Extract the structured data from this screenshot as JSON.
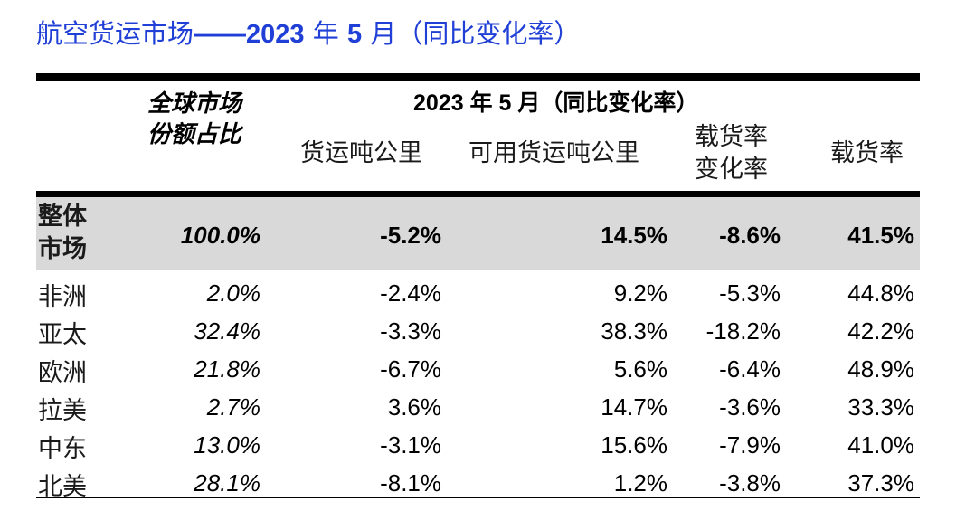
{
  "title": {
    "prefix": "航空货运市场",
    "dashes": "——",
    "year": "2023",
    "nian": "年",
    "month": "5",
    "yue": "月（同比变化率）"
  },
  "colors": {
    "title": "#1f3fd6",
    "band": "#d9d9d9"
  },
  "header": {
    "share_line1": "全球市场",
    "share_line2": "份额占比",
    "group_label": "2023 年 5 月（同比变化率）",
    "col_ftk": "货运吨公里",
    "col_aftk": "可用货运吨公里",
    "col_lf_change_line1": "载货率",
    "col_lf_change_line2": "变化率",
    "col_lf": "载货率"
  },
  "overall": {
    "region_line1": "整体",
    "region_line2": "市场",
    "share": "100.0%",
    "ftk": "-5.2%",
    "aftk": "14.5%",
    "lf_change": "-8.6%",
    "lf": "41.5%"
  },
  "rows": [
    {
      "region": "非洲",
      "share": "2.0%",
      "ftk": "-2.4%",
      "aftk": "9.2%",
      "lf_change": "-5.3%",
      "lf": "44.8%"
    },
    {
      "region": "亚太",
      "share": "32.4%",
      "ftk": "-3.3%",
      "aftk": "38.3%",
      "lf_change": "-18.2%",
      "lf": "42.2%"
    },
    {
      "region": "欧洲",
      "share": "21.8%",
      "ftk": "-6.7%",
      "aftk": "5.6%",
      "lf_change": "-6.4%",
      "lf": "48.9%"
    },
    {
      "region": "拉美",
      "share": "2.7%",
      "ftk": "3.6%",
      "aftk": "14.7%",
      "lf_change": "-3.6%",
      "lf": "33.3%"
    },
    {
      "region": "中东",
      "share": "13.0%",
      "ftk": "-3.1%",
      "aftk": "15.6%",
      "lf_change": "-7.9%",
      "lf": "41.0%"
    },
    {
      "region": "北美",
      "share": "28.1%",
      "ftk": "-8.1%",
      "aftk": "1.2%",
      "lf_change": "-3.8%",
      "lf": "37.3%"
    }
  ]
}
